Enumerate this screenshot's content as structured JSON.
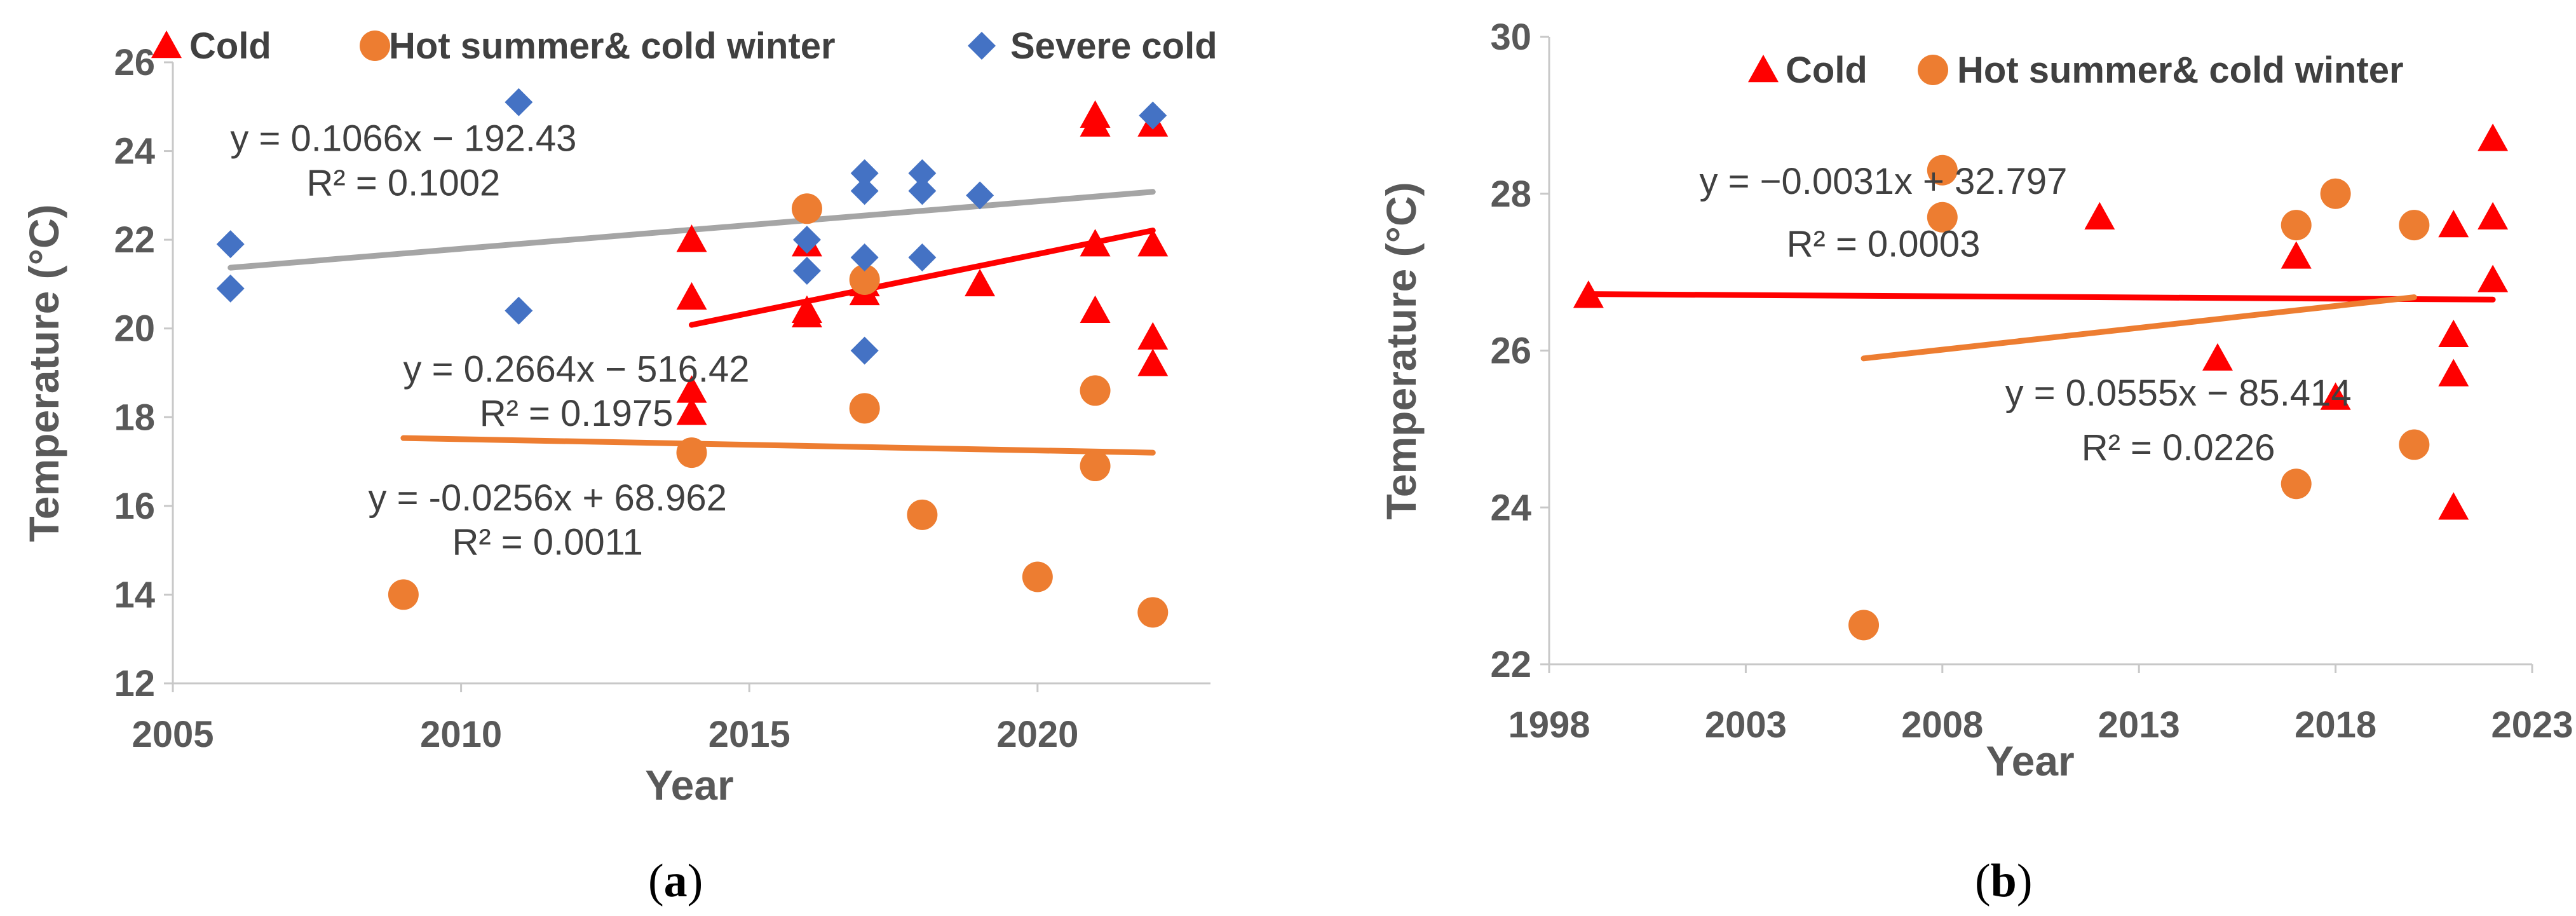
{
  "chart_data": [
    {
      "panel": "(a)",
      "panel_letter": "a",
      "type": "scatter",
      "xlabel": "Year",
      "ylabel": "Temperature (°C)",
      "xlim": [
        2005,
        2023
      ],
      "ylim": [
        12,
        26
      ],
      "x_ticks": [
        2005,
        2010,
        2015,
        2020
      ],
      "y_ticks": [
        12,
        14,
        16,
        18,
        20,
        22,
        24,
        26
      ],
      "grid": false,
      "legend_position": "top",
      "series": [
        {
          "name": "Cold",
          "marker": "triangle",
          "color": "#ff0000",
          "points": [
            [
              2014,
              22.0
            ],
            [
              2014,
              20.7
            ],
            [
              2014,
              18.6
            ],
            [
              2014,
              18.1
            ],
            [
              2016,
              21.9
            ],
            [
              2016,
              20.4
            ],
            [
              2016,
              20.3
            ],
            [
              2017,
              21.0
            ],
            [
              2017,
              20.8
            ],
            [
              2019,
              21.0
            ],
            [
              2021,
              24.8
            ],
            [
              2021,
              24.6
            ],
            [
              2021,
              21.9
            ],
            [
              2021,
              20.4
            ],
            [
              2022,
              24.6
            ],
            [
              2022,
              21.9
            ],
            [
              2022,
              19.8
            ],
            [
              2022,
              19.2
            ]
          ],
          "trend": {
            "x": [
              2014,
              2022
            ],
            "y": [
              20.08,
              22.21
            ],
            "color": "#ff0000"
          }
        },
        {
          "name": "Hot summer& cold winter",
          "marker": "circle",
          "color": "#ed7d31",
          "points": [
            [
              2009,
              14.0
            ],
            [
              2014,
              17.2
            ],
            [
              2016,
              22.7
            ],
            [
              2017,
              21.1
            ],
            [
              2017,
              18.2
            ],
            [
              2018,
              15.8
            ],
            [
              2020,
              14.4
            ],
            [
              2021,
              18.6
            ],
            [
              2021,
              16.9
            ],
            [
              2022,
              13.6
            ]
          ],
          "trend": {
            "x": [
              2009,
              2022
            ],
            "y": [
              17.53,
              17.2
            ],
            "color": "#ed7d31"
          }
        },
        {
          "name": "Severe cold",
          "marker": "diamond",
          "color": "#4472c4",
          "points": [
            [
              2006,
              21.9
            ],
            [
              2006,
              20.9
            ],
            [
              2011,
              25.1
            ],
            [
              2011,
              20.4
            ],
            [
              2016,
              22.0
            ],
            [
              2016,
              21.3
            ],
            [
              2017,
              23.5
            ],
            [
              2017,
              23.1
            ],
            [
              2017,
              21.6
            ],
            [
              2017,
              19.5
            ],
            [
              2018,
              23.5
            ],
            [
              2018,
              23.1
            ],
            [
              2018,
              21.6
            ],
            [
              2019,
              23.0
            ],
            [
              2022,
              24.8
            ]
          ],
          "trend": {
            "x": [
              2006,
              2022
            ],
            "y": [
              21.37,
              23.08
            ],
            "color": "#a5a5a5"
          }
        }
      ],
      "annotations": [
        {
          "line1": "y = 0.1066x − 192.43",
          "line2": "R² = 0.1002",
          "x": 2009,
          "y1": 24.0,
          "y2": 23.0
        },
        {
          "line1": "y = 0.2664x − 516.42",
          "line2": "R² = 0.1975",
          "x": 2012,
          "y1": 18.8,
          "y2": 17.8
        },
        {
          "line1": "y = -0.0256x + 68.962",
          "line2": "R² = 0.0011",
          "x": 2011.5,
          "y1": 15.9,
          "y2": 14.9
        }
      ]
    },
    {
      "panel": "(b)",
      "panel_letter": "b",
      "type": "scatter",
      "xlabel": "Year",
      "ylabel": "Temperature (°C)",
      "xlim": [
        1998,
        2023
      ],
      "ylim": [
        22,
        30
      ],
      "x_ticks": [
        1998,
        2003,
        2008,
        2013,
        2018,
        2023
      ],
      "y_ticks": [
        22,
        24,
        26,
        28,
        30
      ],
      "grid": false,
      "legend_position": "top",
      "series": [
        {
          "name": "Cold",
          "marker": "triangle",
          "color": "#ff0000",
          "points": [
            [
              1999,
              26.7
            ],
            [
              2012,
              27.7
            ],
            [
              2015,
              25.9
            ],
            [
              2017,
              27.2
            ],
            [
              2018,
              25.4
            ],
            [
              2021,
              27.6
            ],
            [
              2021,
              26.2
            ],
            [
              2021,
              25.7
            ],
            [
              2021,
              24.0
            ],
            [
              2022,
              28.7
            ],
            [
              2022,
              27.7
            ],
            [
              2022,
              26.9
            ]
          ],
          "trend": {
            "x": [
              1999,
              2022
            ],
            "y": [
              26.72,
              26.65
            ],
            "color": "#ff0000"
          }
        },
        {
          "name": "Hot summer& cold winter",
          "marker": "circle",
          "color": "#ed7d31",
          "points": [
            [
              2006,
              22.5
            ],
            [
              2008,
              28.3
            ],
            [
              2008,
              27.7
            ],
            [
              2017,
              27.6
            ],
            [
              2017,
              24.3
            ],
            [
              2018,
              28.0
            ],
            [
              2020,
              27.6
            ],
            [
              2020,
              24.8
            ]
          ],
          "trend": {
            "x": [
              2006,
              2020
            ],
            "y": [
              25.9,
              26.68
            ],
            "color": "#ed7d31"
          }
        }
      ],
      "annotations": [
        {
          "line1": "y = −0.0031x + 32.797",
          "line2": "R² = 0.0003",
          "x": 2006.5,
          "y1": 28.0,
          "y2": 27.2
        },
        {
          "line1": "y = 0.0555x − 85.414",
          "line2": "R² = 0.0226",
          "x": 2014,
          "y1": 25.3,
          "y2": 24.6
        }
      ]
    }
  ]
}
